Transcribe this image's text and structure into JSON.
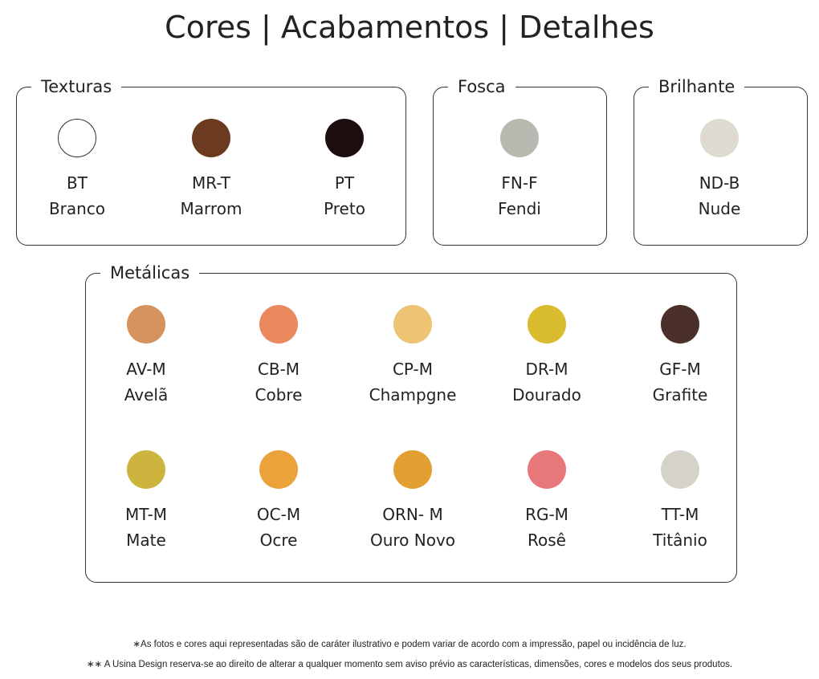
{
  "title": "Cores | Acabamentos | Detalhes",
  "groups": [
    {
      "label": "Texturas",
      "items": [
        {
          "code": "BT",
          "name": "Branco",
          "color": "#ffffff"
        },
        {
          "code": "MR-T",
          "name": "Marrom",
          "color": "#6b3a1f"
        },
        {
          "code": "PT",
          "name": "Preto",
          "color": "#1c0e0c"
        }
      ]
    },
    {
      "label": "Fosca",
      "items": [
        {
          "code": "FN-F",
          "name": "Fendi",
          "color": "#b9b8b0"
        }
      ]
    },
    {
      "label": "Brilhante",
      "items": [
        {
          "code": "ND-B",
          "name": "Nude",
          "color": "#dedad1"
        }
      ]
    },
    {
      "label": "Metálicas",
      "items": [
        {
          "code": "AV-M",
          "name": "Avelã",
          "color": "#d4935f"
        },
        {
          "code": "CB-M",
          "name": "Cobre",
          "color": "#ea8860"
        },
        {
          "code": "CP-M",
          "name": "Champgne",
          "color": "#ecc473"
        },
        {
          "code": "DR-M",
          "name": "Dourado",
          "color": "#d8bc2e"
        },
        {
          "code": "GF-M",
          "name": "Grafite",
          "color": "#4a3029"
        },
        {
          "code": "MT-M",
          "name": "Mate",
          "color": "#cdb43f"
        },
        {
          "code": "OC-M",
          "name": "Ocre",
          "color": "#eca23a"
        },
        {
          "code": "ORN- M",
          "name": "Ouro Novo",
          "color": "#e3a032"
        },
        {
          "code": "RG-M",
          "name": "Rosê",
          "color": "#e8777a"
        },
        {
          "code": "TT-M",
          "name": "Titânio",
          "color": "#d5d3c9"
        }
      ]
    }
  ],
  "notes": [
    "∗As fotos e cores aqui representadas são de caráter ilustrativo e podem variar de acordo com a impressão, papel ou incidência de luz.",
    "∗∗ A Usina Design reserva-se ao direito de alterar a qualquer momento sem  aviso prévio  as características, dimensões, cores e modelos dos seus produtos."
  ]
}
